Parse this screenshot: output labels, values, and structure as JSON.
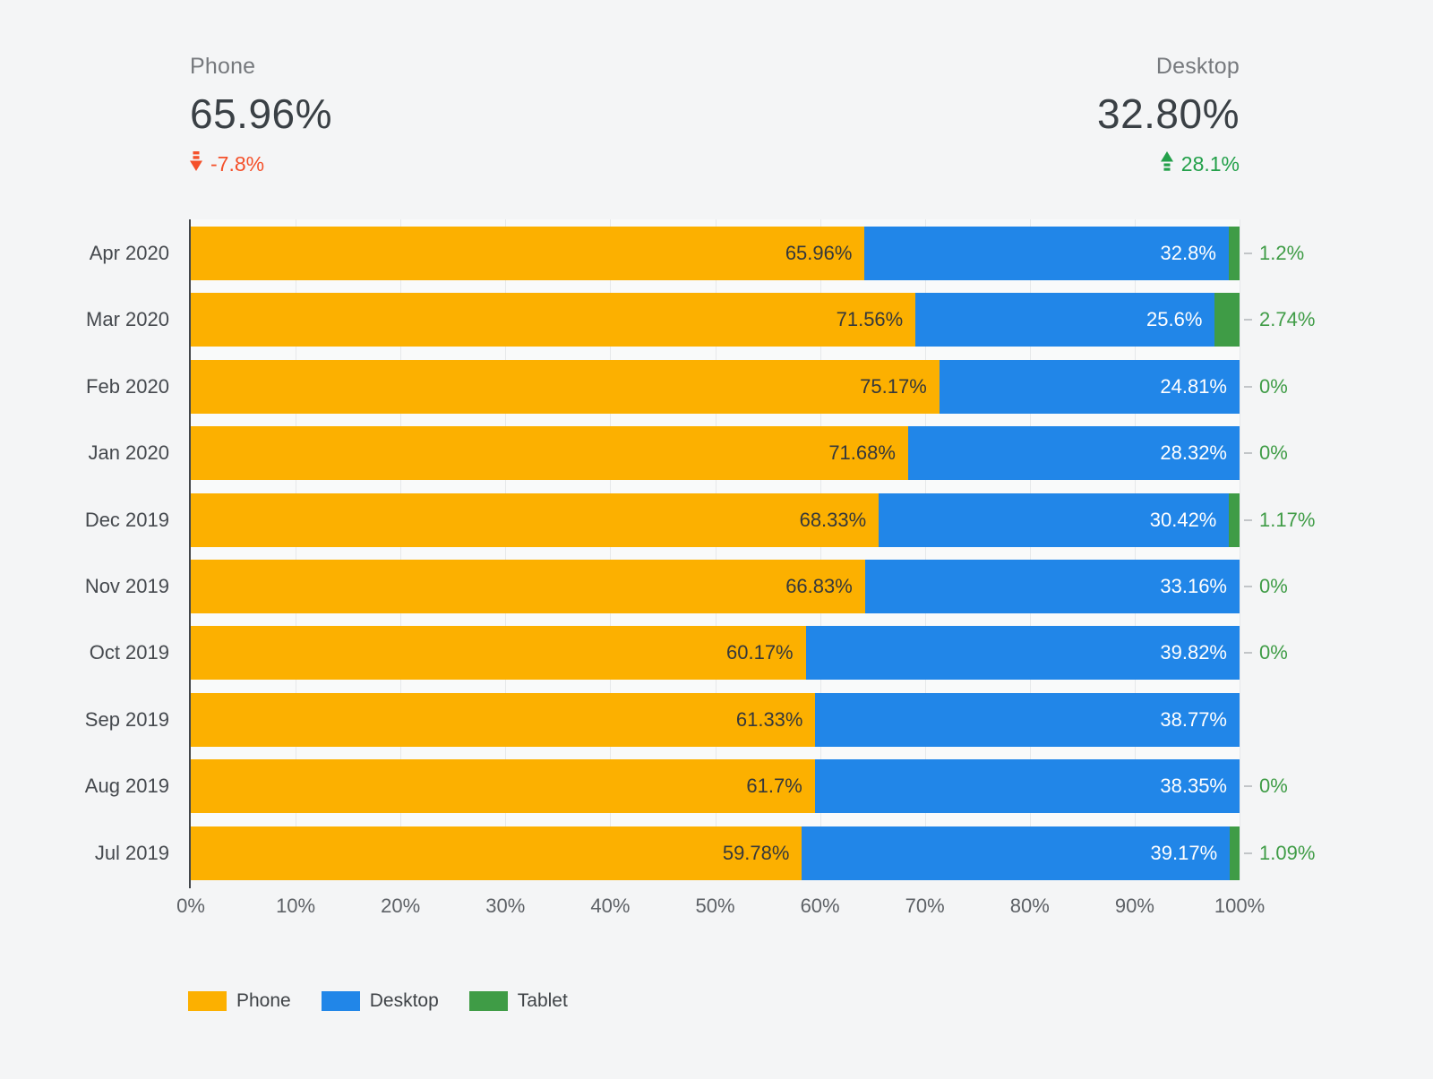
{
  "kpis": {
    "phone": {
      "label": "Phone",
      "value": "65.96%",
      "change": "-7.8%",
      "direction": "down"
    },
    "desktop": {
      "label": "Desktop",
      "value": "32.80%",
      "change": "28.1%",
      "direction": "up"
    }
  },
  "colors": {
    "phone": "#FCB000",
    "desktop": "#2186E8",
    "tablet": "#3F9C46",
    "negative_change": "#F4502A",
    "positive_change": "#23A04A"
  },
  "chart_data": {
    "type": "bar",
    "orientation": "horizontal",
    "stacked": true,
    "grid": true,
    "legend_position": "bottom",
    "xlim": [
      0,
      100
    ],
    "x_ticks": [
      "0%",
      "10%",
      "20%",
      "30%",
      "40%",
      "50%",
      "60%",
      "70%",
      "80%",
      "90%",
      "100%"
    ],
    "categories": [
      "Apr 2020",
      "Mar 2020",
      "Feb 2020",
      "Jan 2020",
      "Dec 2019",
      "Nov 2019",
      "Oct 2019",
      "Sep 2019",
      "Aug 2019",
      "Jul 2019"
    ],
    "series": [
      {
        "name": "Phone",
        "color": "#FCB000",
        "values": [
          65.96,
          71.56,
          75.17,
          71.68,
          68.33,
          66.83,
          60.17,
          61.33,
          61.7,
          59.78
        ],
        "labels": [
          "65.96%",
          "71.56%",
          "75.17%",
          "71.68%",
          "68.33%",
          "66.83%",
          "60.17%",
          "61.33%",
          "61.7%",
          "59.78%"
        ]
      },
      {
        "name": "Desktop",
        "color": "#2186E8",
        "values": [
          32.8,
          25.6,
          24.81,
          28.32,
          30.42,
          33.16,
          39.82,
          38.77,
          38.35,
          39.17
        ],
        "labels": [
          "32.8%",
          "25.6%",
          "24.81%",
          "28.32%",
          "30.42%",
          "33.16%",
          "39.82%",
          "38.77%",
          "38.35%",
          "39.17%"
        ]
      },
      {
        "name": "Tablet",
        "color": "#3F9C46",
        "values": [
          1.2,
          2.74,
          0,
          0,
          1.17,
          0,
          0,
          0,
          0,
          1.09
        ],
        "labels": [
          "1.2%",
          "2.74%",
          "0%",
          "0%",
          "1.17%",
          "0%",
          "0%",
          null,
          "0%",
          "1.09%"
        ]
      }
    ]
  }
}
